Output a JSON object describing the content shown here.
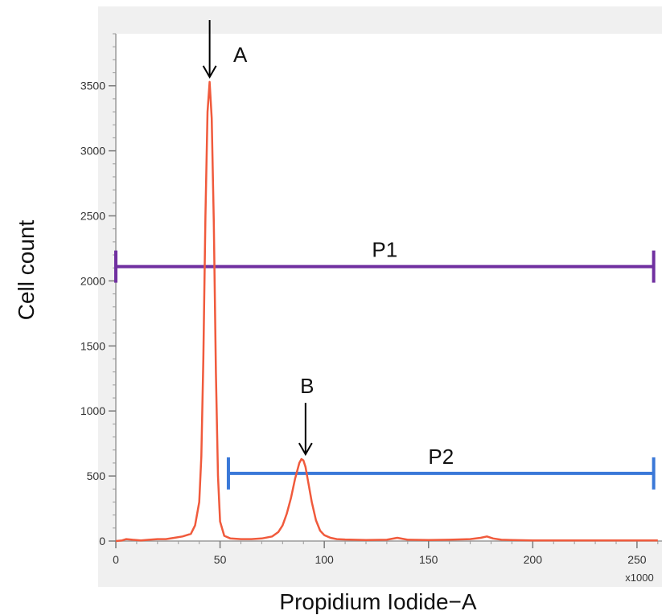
{
  "chart_data": {
    "type": "line",
    "xlabel": "Propidium Iodide−A",
    "ylabel": "Cell count",
    "x_multiplier_label": "x1000",
    "xlim": [
      0,
      262
    ],
    "ylim": [
      0,
      3900
    ],
    "xticks": [
      0,
      50,
      100,
      150,
      200,
      250
    ],
    "yticks": [
      0,
      500,
      1000,
      1500,
      2000,
      2500,
      3000,
      3500
    ],
    "grid": false,
    "series": [
      {
        "color": "#f05a3c",
        "x": [
          0,
          3,
          5,
          8,
          12,
          16,
          20,
          24,
          28,
          32,
          36,
          38,
          40,
          41,
          42,
          43,
          44,
          45,
          46,
          47,
          48,
          49,
          50,
          52,
          55,
          60,
          65,
          70,
          75,
          78,
          80,
          82,
          84,
          86,
          88,
          89,
          90,
          91,
          92,
          94,
          96,
          98,
          100,
          103,
          106,
          110,
          120,
          130,
          135,
          140,
          150,
          160,
          170,
          175,
          178,
          181,
          185,
          190,
          200,
          210,
          220,
          230,
          240,
          250,
          260
        ],
        "y": [
          0,
          5,
          15,
          10,
          5,
          10,
          15,
          15,
          25,
          35,
          55,
          120,
          300,
          650,
          1400,
          2500,
          3300,
          3530,
          3250,
          2450,
          1300,
          500,
          150,
          40,
          20,
          15,
          15,
          20,
          35,
          70,
          120,
          210,
          330,
          480,
          600,
          630,
          620,
          570,
          480,
          300,
          160,
          80,
          45,
          25,
          15,
          12,
          8,
          10,
          25,
          10,
          8,
          10,
          15,
          25,
          35,
          20,
          10,
          8,
          5,
          5,
          5,
          5,
          5,
          5,
          5
        ]
      }
    ],
    "gates": [
      {
        "name": "P1",
        "x_start": 0,
        "x_end": 258,
        "y": 2110,
        "color": "#7030a0"
      },
      {
        "name": "P2",
        "x_start": 54,
        "x_end": 258,
        "y": 520,
        "color": "#3a78d8"
      }
    ],
    "annotations": [
      {
        "text": "A",
        "x": 45,
        "y": 3530
      },
      {
        "text": "B",
        "x": 91,
        "y": 630
      }
    ]
  }
}
